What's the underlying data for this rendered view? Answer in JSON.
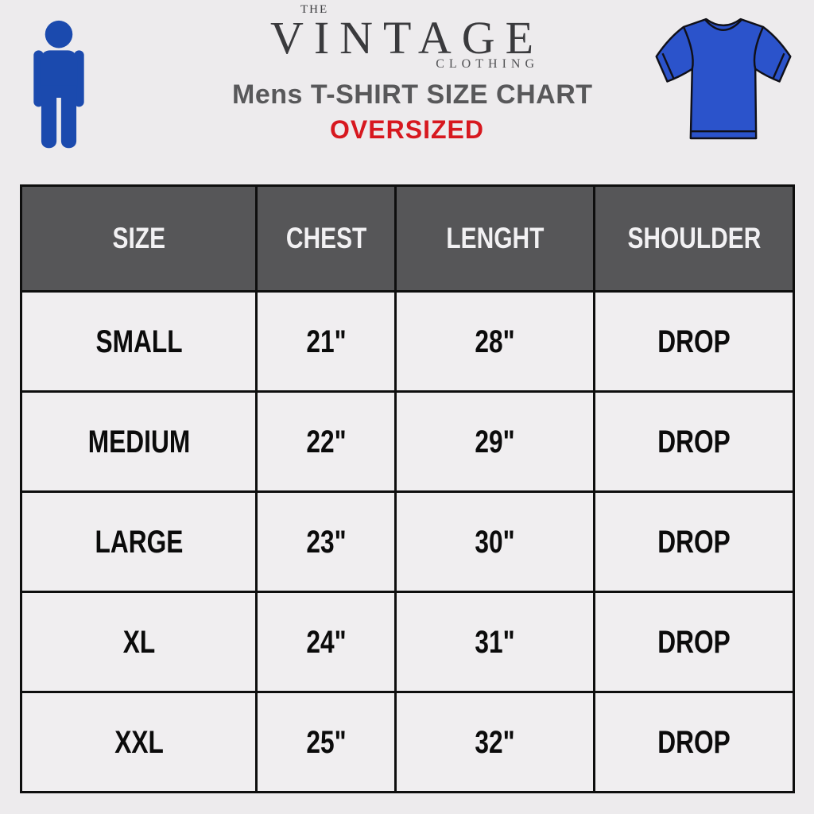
{
  "brand": {
    "the": "THE",
    "name": "VINTAGE",
    "clothing": "CLOTHING"
  },
  "header": {
    "title": "Mens T-SHIRT SIZE CHART",
    "subtitle": "OVERSIZED"
  },
  "icons": {
    "person": "person-icon",
    "tshirt": "tshirt-icon"
  },
  "colors": {
    "background": "#edebed",
    "table_header_bg": "#565658",
    "table_header_text": "#f2f1f3",
    "table_border": "#0e0e0e",
    "title_gray": "#58585a",
    "oversized_red": "#d7181f",
    "person_blue": "#1b4aae",
    "shirt_blue": "#2b53cb"
  },
  "table": {
    "headers": [
      "SIZE",
      "CHEST",
      "LENGHT",
      "SHOULDER"
    ],
    "rows": [
      [
        "SMALL",
        "21\"",
        "28\"",
        "DROP"
      ],
      [
        "MEDIUM",
        "22\"",
        "29\"",
        "DROP"
      ],
      [
        "LARGE",
        "23\"",
        "30\"",
        "DROP"
      ],
      [
        "XL",
        "24\"",
        "31\"",
        "DROP"
      ],
      [
        "XXL",
        "25\"",
        "32\"",
        "DROP"
      ]
    ]
  }
}
